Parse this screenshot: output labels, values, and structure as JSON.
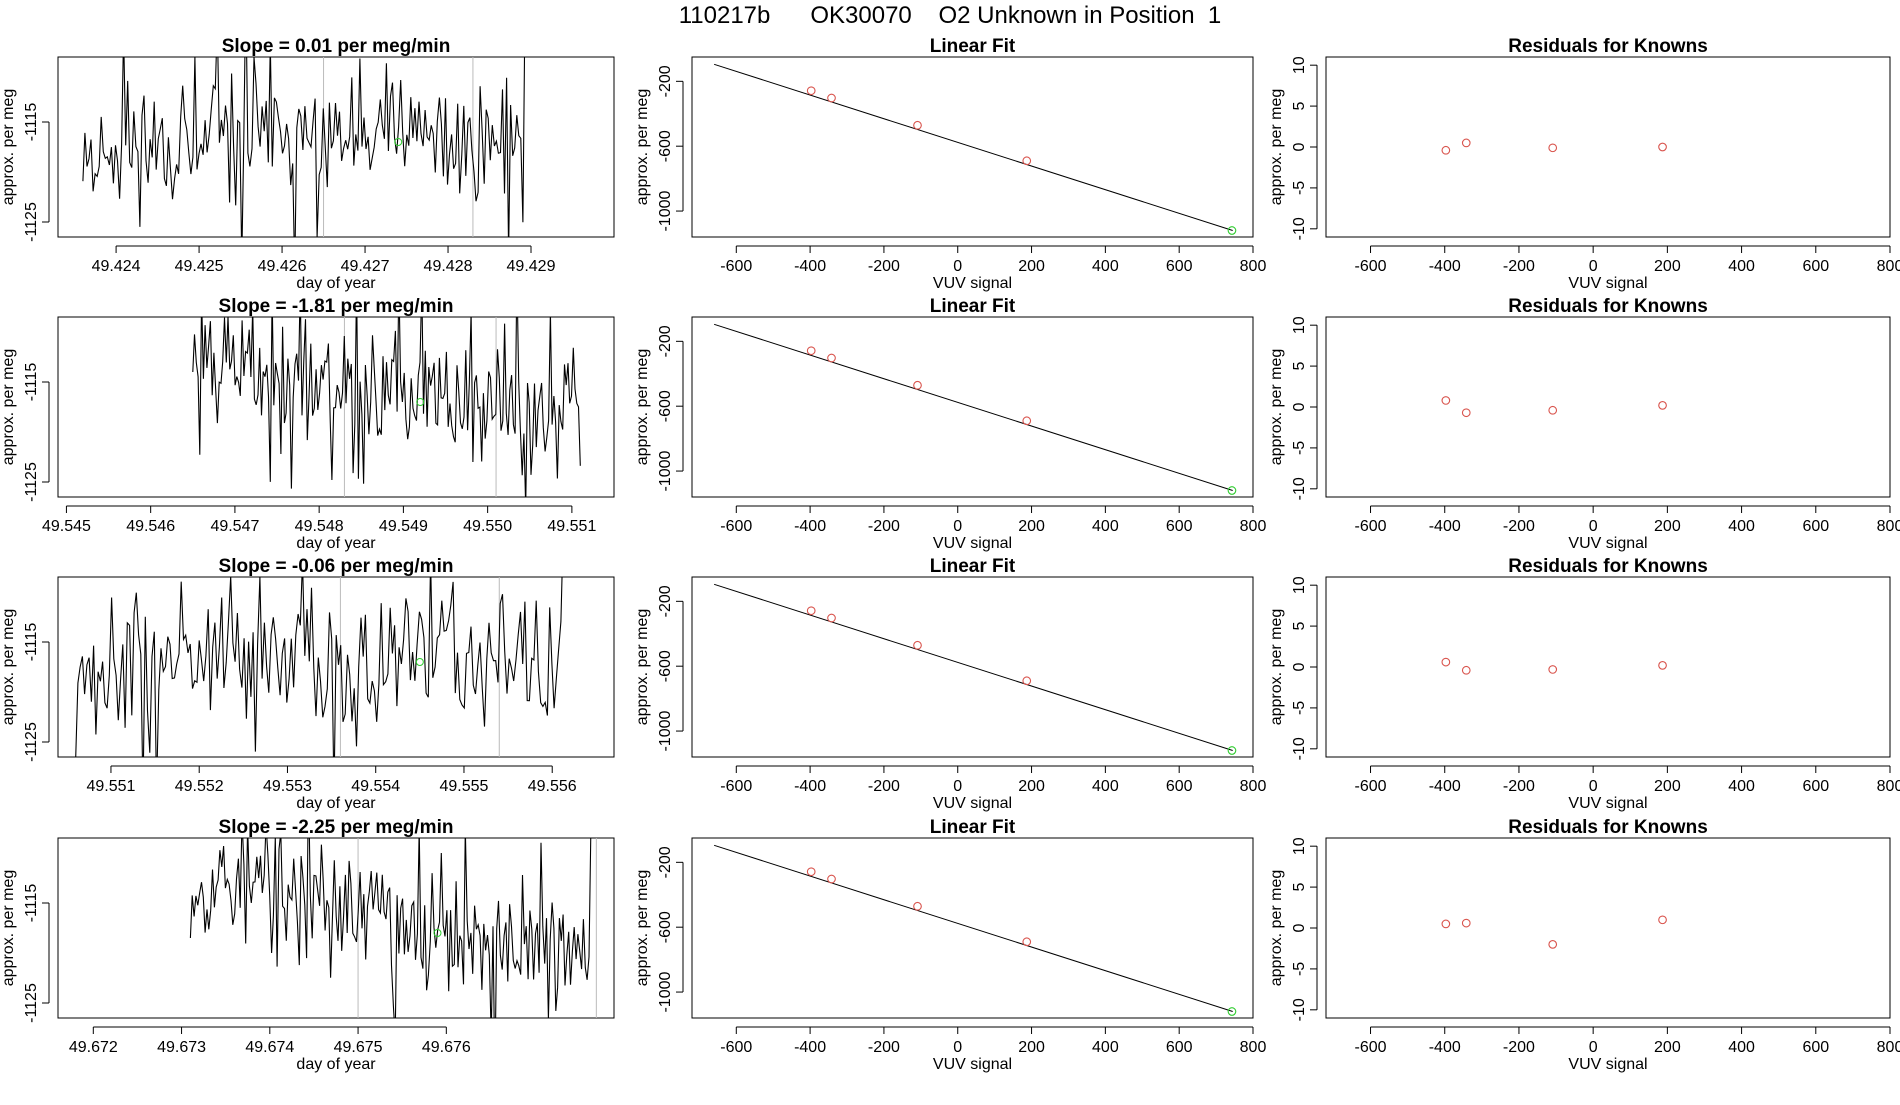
{
  "page": {
    "title": "110217b      OK30070    O2 Unknown in Position  1"
  },
  "colors": {
    "line": "#000000",
    "known_point": "#d9544d",
    "unknown_point": "#2ecc2e",
    "marker_line": "#bbbbbb"
  },
  "chart_data": [
    {
      "type": "line",
      "panel": "drift-1",
      "title": "Slope =  0.01  per meg/min",
      "xlabel": "day of year",
      "ylabel": "approx. per meg",
      "xlim": [
        49.4233,
        49.43
      ],
      "ylim": [
        -1126.5,
        -1108.5
      ],
      "xticks": [
        "49.424",
        "49.425",
        "49.426",
        "49.427",
        "49.428",
        "49.429"
      ],
      "xtick_values": [
        49.424,
        49.425,
        49.426,
        49.427,
        49.428,
        49.429
      ],
      "yticks": [
        "-1115",
        "-1125"
      ],
      "ytick_values": [
        -1115,
        -1125
      ],
      "x_range": [
        49.4236,
        49.429
      ],
      "seed": 11,
      "trend": [
        -1117,
        -1117
      ],
      "tail": "up",
      "vlines": [
        49.4265,
        49.4283
      ],
      "unknown_point": {
        "x": 49.4274,
        "y": -1117
      }
    },
    {
      "type": "scatter",
      "panel": "fit-1",
      "title": "Linear Fit",
      "xlabel": "VUV signal",
      "ylabel": "approx. per meg",
      "xlim": [
        -720,
        800
      ],
      "ylim": [
        -1160,
        -50
      ],
      "xticks": [
        "-600",
        "-400",
        "-200",
        "0",
        "200",
        "400",
        "600",
        "800"
      ],
      "xtick_values": [
        -600,
        -400,
        -200,
        0,
        200,
        400,
        600,
        800
      ],
      "yticks": [
        "-200",
        "-600",
        "-1000"
      ],
      "ytick_values": [
        -200,
        -600,
        -1000
      ],
      "fit_line": {
        "x": [
          -660,
          745
        ],
        "y": [
          -95,
          -1120
        ]
      },
      "knowns": {
        "x": [
          -397,
          -342,
          -109,
          187
        ],
        "y": [
          -258,
          -303,
          -471,
          -690
        ]
      },
      "unknown": {
        "x": 743,
        "y": -1120
      }
    },
    {
      "type": "scatter",
      "panel": "resid-1",
      "title": "Residuals for Knowns",
      "xlabel": "VUV signal",
      "ylabel": "approx. per meg",
      "xlim": [
        -720,
        800
      ],
      "ylim": [
        -11,
        11
      ],
      "xticks": [
        "-600",
        "-400",
        "-200",
        "0",
        "200",
        "400",
        "600",
        "800"
      ],
      "xtick_values": [
        -600,
        -400,
        -200,
        0,
        200,
        400,
        600,
        800
      ],
      "yticks": [
        "10",
        "5",
        "0",
        "-5",
        "-10"
      ],
      "ytick_values": [
        10,
        5,
        0,
        -5,
        -10
      ],
      "knowns": {
        "x": [
          -397,
          -342,
          -109,
          187
        ],
        "y": [
          -0.4,
          0.5,
          -0.1,
          0.0
        ]
      }
    },
    {
      "type": "line",
      "panel": "drift-2",
      "title": "Slope =  -1.81  per meg/min",
      "xlabel": "day of year",
      "ylabel": "approx. per meg",
      "xlim": [
        49.5449,
        49.5515
      ],
      "ylim": [
        -1126.5,
        -1108.5
      ],
      "xticks": [
        "49.545",
        "49.546",
        "49.547",
        "49.548",
        "49.549",
        "49.550",
        "49.551"
      ],
      "xtick_values": [
        49.545,
        49.546,
        49.547,
        49.548,
        49.549,
        49.55,
        49.551
      ],
      "yticks": [
        "-1115",
        "-1125"
      ],
      "ytick_values": [
        -1115,
        -1125
      ],
      "x_range": [
        49.5465,
        49.5511
      ],
      "seed": 23,
      "trend": [
        -1112,
        -1120
      ],
      "tail": "none",
      "vlines": [
        49.5483,
        49.5501
      ],
      "unknown_point": {
        "x": 49.5492,
        "y": -1117
      }
    },
    {
      "type": "scatter",
      "panel": "fit-2",
      "title": "Linear Fit",
      "xlabel": "VUV signal",
      "ylabel": "approx. per meg",
      "xlim": [
        -720,
        800
      ],
      "ylim": [
        -1160,
        -50
      ],
      "xticks": [
        "-600",
        "-400",
        "-200",
        "0",
        "200",
        "400",
        "600",
        "800"
      ],
      "xtick_values": [
        -600,
        -400,
        -200,
        0,
        200,
        400,
        600,
        800
      ],
      "yticks": [
        "-200",
        "-600",
        "-1000"
      ],
      "ytick_values": [
        -200,
        -600,
        -1000
      ],
      "fit_line": {
        "x": [
          -660,
          745
        ],
        "y": [
          -95,
          -1120
        ]
      },
      "knowns": {
        "x": [
          -397,
          -342,
          -109,
          187
        ],
        "y": [
          -258,
          -303,
          -471,
          -690
        ]
      },
      "unknown": {
        "x": 743,
        "y": -1120
      }
    },
    {
      "type": "scatter",
      "panel": "resid-2",
      "title": "Residuals for Knowns",
      "xlabel": "VUV signal",
      "ylabel": "approx. per meg",
      "xlim": [
        -720,
        800
      ],
      "ylim": [
        -11,
        11
      ],
      "xticks": [
        "-600",
        "-400",
        "-200",
        "0",
        "200",
        "400",
        "600",
        "800"
      ],
      "xtick_values": [
        -600,
        -400,
        -200,
        0,
        200,
        400,
        600,
        800
      ],
      "yticks": [
        "10",
        "5",
        "0",
        "-5",
        "-10"
      ],
      "ytick_values": [
        10,
        5,
        0,
        -5,
        -10
      ],
      "knowns": {
        "x": [
          -397,
          -342,
          -109,
          187
        ],
        "y": [
          0.8,
          -0.7,
          -0.4,
          0.2
        ]
      }
    },
    {
      "type": "line",
      "panel": "drift-3",
      "title": "Slope =  -0.06  per meg/min",
      "xlabel": "day of year",
      "ylabel": "approx. per meg",
      "xlim": [
        49.5504,
        49.5567
      ],
      "ylim": [
        -1126.5,
        -1108.5
      ],
      "xticks": [
        "49.551",
        "49.552",
        "49.553",
        "49.554",
        "49.555",
        "49.556"
      ],
      "xtick_values": [
        49.551,
        49.552,
        49.553,
        49.554,
        49.555,
        49.556
      ],
      "yticks": [
        "-1115",
        "-1125"
      ],
      "ytick_values": [
        -1115,
        -1125
      ],
      "x_range": [
        49.5506,
        49.5562
      ],
      "seed": 37,
      "trend": [
        -1117,
        -1117
      ],
      "tail": "up",
      "vlines": [
        49.5536,
        49.5554
      ],
      "unknown_point": {
        "x": 49.5545,
        "y": -1117
      }
    },
    {
      "type": "scatter",
      "panel": "fit-3",
      "title": "Linear Fit",
      "xlabel": "VUV signal",
      "ylabel": "approx. per meg",
      "xlim": [
        -720,
        800
      ],
      "ylim": [
        -1160,
        -50
      ],
      "xticks": [
        "-600",
        "-400",
        "-200",
        "0",
        "200",
        "400",
        "600",
        "800"
      ],
      "xtick_values": [
        -600,
        -400,
        -200,
        0,
        200,
        400,
        600,
        800
      ],
      "yticks": [
        "-200",
        "-600",
        "-1000"
      ],
      "ytick_values": [
        -200,
        -600,
        -1000
      ],
      "fit_line": {
        "x": [
          -660,
          745
        ],
        "y": [
          -95,
          -1120
        ]
      },
      "knowns": {
        "x": [
          -397,
          -342,
          -109,
          187
        ],
        "y": [
          -258,
          -303,
          -471,
          -690
        ]
      },
      "unknown": {
        "x": 743,
        "y": -1120
      }
    },
    {
      "type": "scatter",
      "panel": "resid-3",
      "title": "Residuals for Knowns",
      "xlabel": "VUV signal",
      "ylabel": "approx. per meg",
      "xlim": [
        -720,
        800
      ],
      "ylim": [
        -11,
        11
      ],
      "xticks": [
        "-600",
        "-400",
        "-200",
        "0",
        "200",
        "400",
        "600",
        "800"
      ],
      "xtick_values": [
        -600,
        -400,
        -200,
        0,
        200,
        400,
        600,
        800
      ],
      "yticks": [
        "10",
        "5",
        "0",
        "-5",
        "-10"
      ],
      "ytick_values": [
        10,
        5,
        0,
        -5,
        -10
      ],
      "knowns": {
        "x": [
          -397,
          -342,
          -109,
          187
        ],
        "y": [
          0.6,
          -0.4,
          -0.3,
          0.2
        ]
      }
    },
    {
      "type": "line",
      "panel": "drift-4",
      "title": "Slope =  -2.25  per meg/min",
      "xlabel": "day of year",
      "ylabel": "approx. per meg",
      "xlim": [
        49.6716,
        49.6779
      ],
      "ylim": [
        -1126.5,
        -1108.5
      ],
      "xticks": [
        "49.672",
        "49.673",
        "49.674",
        "49.675",
        "49.676"
      ],
      "xtick_values": [
        49.672,
        49.673,
        49.674,
        49.675,
        49.676
      ],
      "yticks": [
        "-1115",
        "-1125"
      ],
      "ytick_values": [
        -1115,
        -1125
      ],
      "x_range": [
        49.6731,
        49.6777
      ],
      "seed": 53,
      "trend": [
        -1112,
        -1121
      ],
      "tail": "up",
      "vlines": [
        49.675,
        49.6777
      ],
      "unknown_point": {
        "x": 49.6759,
        "y": -1118
      }
    },
    {
      "type": "scatter",
      "panel": "fit-4",
      "title": "Linear Fit",
      "xlabel": "VUV signal",
      "ylabel": "approx. per meg",
      "xlim": [
        -720,
        800
      ],
      "ylim": [
        -1160,
        -50
      ],
      "xticks": [
        "-600",
        "-400",
        "-200",
        "0",
        "200",
        "400",
        "600",
        "800"
      ],
      "xtick_values": [
        -600,
        -400,
        -200,
        0,
        200,
        400,
        600,
        800
      ],
      "yticks": [
        "-200",
        "-600",
        "-1000"
      ],
      "ytick_values": [
        -200,
        -600,
        -1000
      ],
      "fit_line": {
        "x": [
          -660,
          745
        ],
        "y": [
          -95,
          -1120
        ]
      },
      "knowns": {
        "x": [
          -397,
          -342,
          -109,
          187
        ],
        "y": [
          -258,
          -303,
          -471,
          -690
        ]
      },
      "unknown": {
        "x": 743,
        "y": -1120
      }
    },
    {
      "type": "scatter",
      "panel": "resid-4",
      "title": "Residuals for Knowns",
      "xlabel": "VUV signal",
      "ylabel": "approx. per meg",
      "xlim": [
        -720,
        800
      ],
      "ylim": [
        -11,
        11
      ],
      "xticks": [
        "-600",
        "-400",
        "-200",
        "0",
        "200",
        "400",
        "600",
        "800"
      ],
      "xtick_values": [
        -600,
        -400,
        -200,
        0,
        200,
        400,
        600,
        800
      ],
      "yticks": [
        "10",
        "5",
        "0",
        "-5",
        "-10"
      ],
      "ytick_values": [
        10,
        5,
        0,
        -5,
        -10
      ],
      "knowns": {
        "x": [
          -397,
          -342,
          -109,
          187
        ],
        "y": [
          0.5,
          0.6,
          -2.0,
          1.0
        ]
      }
    }
  ]
}
